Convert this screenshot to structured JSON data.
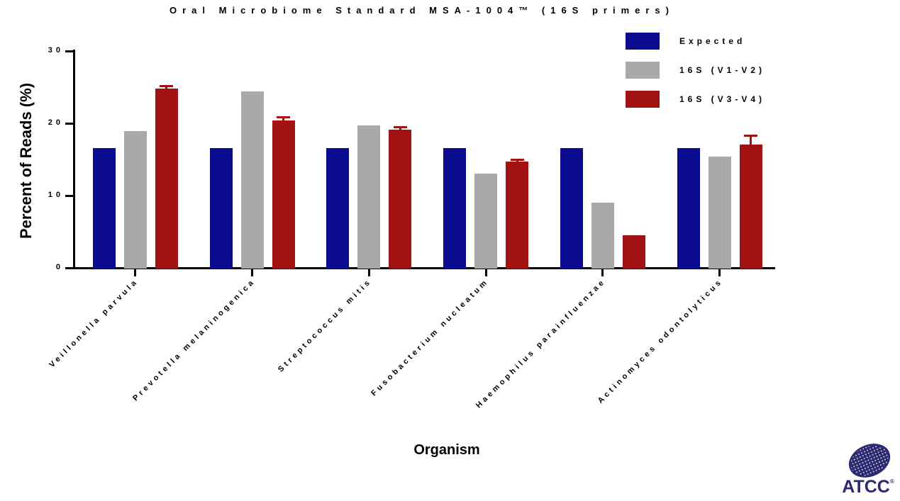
{
  "title": "Oral Microbiome Standard MSA-1004™ (16S primers)",
  "axes": {
    "y_label": "Percent of Reads (%)",
    "x_label": "Organism"
  },
  "logo": {
    "text": "ATCC",
    "registered": "®",
    "color": "#2B2970"
  },
  "chart_data": {
    "type": "bar",
    "title": "Oral Microbiome Standard MSA-1004™ (16S primers)",
    "xlabel": "Organism",
    "ylabel": "Percent of Reads (%)",
    "ylim": [
      0,
      30
    ],
    "yticks": [
      0,
      10,
      20,
      30
    ],
    "grid": false,
    "legend_position": "top-right",
    "categories": [
      "Veillonella parvula",
      "Prevotella melaninogenica",
      "Streptococcus mitis",
      "Fusobacterium nucleatum",
      "Haemophilus parainfluenzae",
      "Actinomyces odontolyticus"
    ],
    "series": [
      {
        "name": "Expected",
        "color": "#0B0B8F",
        "values": [
          16.7,
          16.7,
          16.7,
          16.7,
          16.7,
          16.7
        ],
        "errors": [
          0,
          0,
          0,
          0,
          0,
          0
        ]
      },
      {
        "name": "16S (V1-V2)",
        "color": "#A9A9A9",
        "values": [
          19.0,
          24.5,
          19.8,
          13.1,
          9.1,
          15.5
        ],
        "errors": [
          0,
          0,
          0,
          0,
          0,
          0
        ]
      },
      {
        "name": "16S (V3-V4)",
        "color": "#A31212",
        "values": [
          24.9,
          20.5,
          19.2,
          14.8,
          4.6,
          17.2
        ],
        "errors": [
          0.3,
          0.4,
          0.3,
          0.2,
          0,
          1.1
        ]
      }
    ]
  }
}
